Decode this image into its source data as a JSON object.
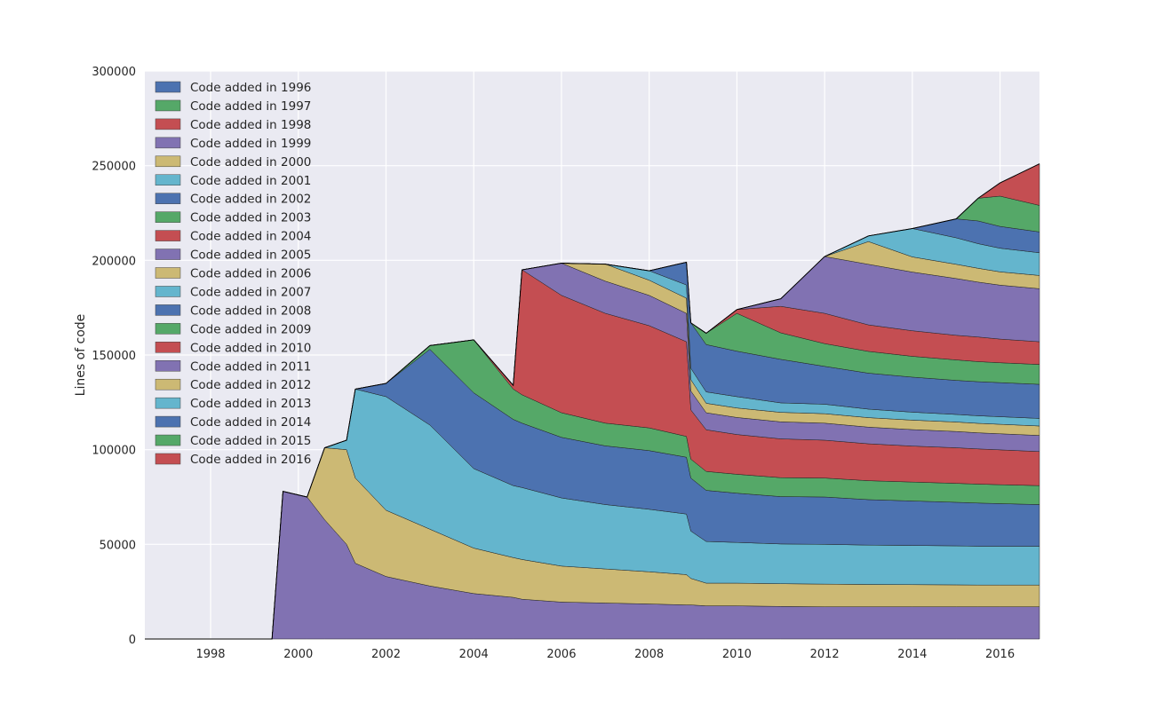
{
  "chart_data": {
    "type": "area",
    "title": "",
    "xlabel": "",
    "ylabel": "Lines of code",
    "xlim": [
      1996.5,
      2016.9
    ],
    "ylim": [
      0,
      300000
    ],
    "grid": true,
    "legend_position": "top-left",
    "x_ticks": [
      1998,
      2000,
      2002,
      2004,
      2006,
      2008,
      2010,
      2012,
      2014,
      2016
    ],
    "x_tick_labels": [
      "1998",
      "2000",
      "2002",
      "2004",
      "2006",
      "2008",
      "2010",
      "2012",
      "2014",
      "2016"
    ],
    "y_ticks": [
      0,
      50000,
      100000,
      150000,
      200000,
      250000,
      300000
    ],
    "y_tick_labels": [
      "0",
      "50000",
      "100000",
      "150000",
      "200000",
      "250000",
      "300000"
    ],
    "x": [
      1996.5,
      1999.4,
      1999.65,
      2000.2,
      2000.6,
      2001.1,
      2001.3,
      2002.0,
      2003.0,
      2004.0,
      2004.9,
      2005.1,
      2006.0,
      2007.0,
      2008.0,
      2008.85,
      2008.95,
      2009.3,
      2010.0,
      2011.0,
      2012.0,
      2013.0,
      2014.0,
      2015.0,
      2015.5,
      2016.0,
      2016.9
    ],
    "series": [
      {
        "name": "Code added in 1996",
        "color": "#4c72b0",
        "values": [
          0,
          0,
          0,
          0,
          0,
          0,
          0,
          0,
          0,
          0,
          0,
          0,
          0,
          0,
          0,
          0,
          0,
          0,
          0,
          0,
          0,
          0,
          0,
          0,
          0,
          0,
          0
        ]
      },
      {
        "name": "Code added in 1997",
        "color": "#55a868",
        "values": [
          0,
          0,
          0,
          0,
          0,
          0,
          0,
          0,
          0,
          0,
          0,
          0,
          0,
          0,
          0,
          0,
          0,
          0,
          0,
          0,
          0,
          0,
          0,
          0,
          0,
          0,
          0
        ]
      },
      {
        "name": "Code added in 1998",
        "color": "#c44e52",
        "values": [
          0,
          0,
          0,
          0,
          0,
          0,
          0,
          0,
          0,
          0,
          0,
          0,
          0,
          0,
          0,
          0,
          0,
          0,
          0,
          0,
          0,
          0,
          0,
          0,
          0,
          0,
          0
        ]
      },
      {
        "name": "Code added in 1999",
        "color": "#8172b2",
        "values": [
          0,
          0,
          78000,
          75000,
          63000,
          50000,
          40000,
          33000,
          28000,
          24000,
          22000,
          21000,
          19500,
          19000,
          18500,
          18000,
          18000,
          17500,
          17500,
          17200,
          17000,
          17000,
          17000,
          17000,
          17000,
          17000,
          17000
        ]
      },
      {
        "name": "Code added in 2000",
        "color": "#ccb974",
        "values": [
          0,
          0,
          0,
          0,
          38000,
          50000,
          45000,
          35000,
          30000,
          24000,
          21000,
          21000,
          19000,
          18000,
          17000,
          16000,
          14000,
          12000,
          12000,
          12000,
          12000,
          11800,
          11700,
          11600,
          11500,
          11500,
          11500
        ]
      },
      {
        "name": "Code added in 2001",
        "color": "#64b5cd",
        "values": [
          0,
          0,
          0,
          0,
          0,
          5000,
          47000,
          60000,
          55000,
          42000,
          38000,
          38000,
          36000,
          34000,
          33000,
          32000,
          25000,
          22000,
          21500,
          21000,
          21000,
          20800,
          20700,
          20600,
          20500,
          20500,
          20500
        ]
      },
      {
        "name": "Code added in 2002",
        "color": "#4c72b0",
        "values": [
          0,
          0,
          0,
          0,
          0,
          0,
          0,
          7000,
          40000,
          40000,
          35000,
          34000,
          32000,
          31000,
          31000,
          30000,
          28000,
          27000,
          26000,
          25000,
          25000,
          24000,
          23500,
          23000,
          22800,
          22500,
          22000
        ]
      },
      {
        "name": "Code added in 2003",
        "color": "#55a868",
        "values": [
          0,
          0,
          0,
          0,
          0,
          0,
          0,
          0,
          2000,
          28000,
          16000,
          15000,
          13000,
          12000,
          12000,
          11000,
          10000,
          10000,
          10000,
          10000,
          10000,
          10000,
          10000,
          10000,
          10000,
          10000,
          10000
        ]
      },
      {
        "name": "Code added in 2004",
        "color": "#c44e52",
        "values": [
          0,
          0,
          0,
          0,
          0,
          0,
          0,
          0,
          0,
          0,
          2000,
          66000,
          62000,
          58000,
          54000,
          50000,
          26000,
          22000,
          21000,
          20500,
          20000,
          19500,
          19000,
          18800,
          18600,
          18400,
          18000
        ]
      },
      {
        "name": "Code added in 2005",
        "color": "#8172b2",
        "values": [
          0,
          0,
          0,
          0,
          0,
          0,
          0,
          0,
          0,
          0,
          0,
          0,
          17000,
          17000,
          16000,
          15000,
          10000,
          9000,
          9000,
          9000,
          9000,
          8800,
          8700,
          8600,
          8500,
          8500,
          8500
        ]
      },
      {
        "name": "Code added in 2006",
        "color": "#ccb974",
        "values": [
          0,
          0,
          0,
          0,
          0,
          0,
          0,
          0,
          0,
          0,
          0,
          0,
          0,
          9000,
          8000,
          8000,
          6000,
          5000,
          5000,
          5000,
          5000,
          5000,
          5000,
          5000,
          5000,
          5000,
          5000
        ]
      },
      {
        "name": "Code added in 2007",
        "color": "#64b5cd",
        "values": [
          0,
          0,
          0,
          0,
          0,
          0,
          0,
          0,
          0,
          0,
          0,
          0,
          0,
          0,
          5000,
          7000,
          6000,
          6000,
          6000,
          5000,
          5000,
          4500,
          4200,
          4000,
          4000,
          4000,
          4000
        ]
      },
      {
        "name": "Code added in 2008",
        "color": "#4c72b0",
        "values": [
          0,
          0,
          0,
          0,
          0,
          0,
          0,
          0,
          0,
          0,
          0,
          0,
          0,
          0,
          0,
          12000,
          24000,
          25000,
          24000,
          23000,
          20000,
          19000,
          18500,
          18000,
          18000,
          18000,
          18000
        ]
      },
      {
        "name": "Code added in 2009",
        "color": "#55a868",
        "values": [
          0,
          0,
          0,
          0,
          0,
          0,
          0,
          0,
          0,
          0,
          0,
          0,
          0,
          0,
          0,
          0,
          0,
          6000,
          20000,
          14000,
          12000,
          11500,
          11000,
          10800,
          10600,
          10500,
          10500
        ]
      },
      {
        "name": "Code added in 2010",
        "color": "#c44e52",
        "values": [
          0,
          0,
          0,
          0,
          0,
          0,
          0,
          0,
          0,
          0,
          0,
          0,
          0,
          0,
          0,
          0,
          0,
          0,
          2000,
          14000,
          16000,
          14000,
          13500,
          13000,
          13000,
          12500,
          12000
        ]
      },
      {
        "name": "Code added in 2011",
        "color": "#8172b2",
        "values": [
          0,
          0,
          0,
          0,
          0,
          0,
          0,
          0,
          0,
          0,
          0,
          0,
          0,
          0,
          0,
          0,
          0,
          0,
          0,
          4000,
          30000,
          32000,
          31000,
          30000,
          29000,
          28500,
          28000
        ]
      },
      {
        "name": "Code added in 2012",
        "color": "#ccb974",
        "values": [
          0,
          0,
          0,
          0,
          0,
          0,
          0,
          0,
          0,
          0,
          0,
          0,
          0,
          0,
          0,
          0,
          0,
          0,
          0,
          0,
          0,
          12000,
          8000,
          7500,
          7300,
          7000,
          7000
        ]
      },
      {
        "name": "Code added in 2013",
        "color": "#64b5cd",
        "values": [
          0,
          0,
          0,
          0,
          0,
          0,
          0,
          0,
          0,
          0,
          0,
          0,
          0,
          0,
          0,
          0,
          0,
          0,
          0,
          0,
          0,
          3000,
          15000,
          14000,
          13000,
          12500,
          12000
        ]
      },
      {
        "name": "Code added in 2014",
        "color": "#4c72b0",
        "values": [
          0,
          0,
          0,
          0,
          0,
          0,
          0,
          0,
          0,
          0,
          0,
          0,
          0,
          0,
          0,
          0,
          0,
          0,
          0,
          0,
          0,
          0,
          0,
          10000,
          12000,
          11500,
          11000
        ]
      },
      {
        "name": "Code added in 2015",
        "color": "#55a868",
        "values": [
          0,
          0,
          0,
          0,
          0,
          0,
          0,
          0,
          0,
          0,
          0,
          0,
          0,
          0,
          0,
          0,
          0,
          0,
          0,
          0,
          0,
          0,
          0,
          0,
          12000,
          16000,
          14000
        ]
      },
      {
        "name": "Code added in 2016",
        "color": "#c44e52",
        "values": [
          0,
          0,
          0,
          0,
          0,
          0,
          0,
          0,
          0,
          0,
          0,
          0,
          0,
          0,
          0,
          0,
          0,
          0,
          0,
          0,
          0,
          0,
          0,
          0,
          0,
          7000,
          22000
        ]
      }
    ]
  }
}
